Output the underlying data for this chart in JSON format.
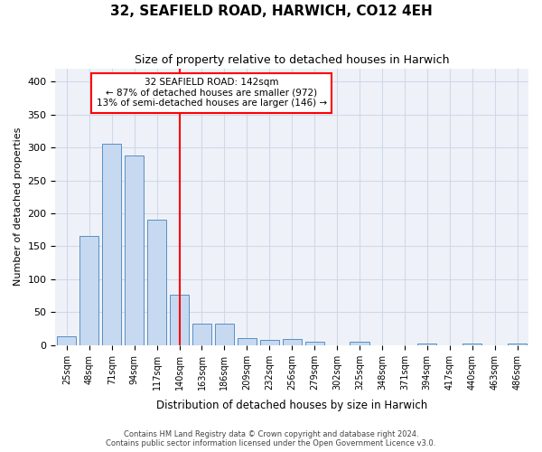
{
  "title": "32, SEAFIELD ROAD, HARWICH, CO12 4EH",
  "subtitle": "Size of property relative to detached houses in Harwich",
  "xlabel": "Distribution of detached houses by size in Harwich",
  "ylabel": "Number of detached properties",
  "categories": [
    "25sqm",
    "48sqm",
    "71sqm",
    "94sqm",
    "117sqm",
    "140sqm",
    "163sqm",
    "186sqm",
    "209sqm",
    "232sqm",
    "256sqm",
    "279sqm",
    "302sqm",
    "325sqm",
    "348sqm",
    "371sqm",
    "394sqm",
    "417sqm",
    "440sqm",
    "463sqm",
    "486sqm"
  ],
  "values": [
    14,
    165,
    305,
    288,
    190,
    77,
    32,
    32,
    11,
    8,
    9,
    5,
    0,
    5,
    0,
    0,
    3,
    0,
    3,
    0,
    3
  ],
  "bar_color": "#c6d9f0",
  "bar_edge_color": "#5a8fc3",
  "property_line_x": 5,
  "annotation_line1": "32 SEAFIELD ROAD: 142sqm",
  "annotation_line2": "← 87% of detached houses are smaller (972)",
  "annotation_line3": "13% of semi-detached houses are larger (146) →",
  "annotation_box_color": "white",
  "annotation_box_edge_color": "red",
  "vline_color": "red",
  "ylim": [
    0,
    420
  ],
  "yticks": [
    0,
    50,
    100,
    150,
    200,
    250,
    300,
    350,
    400
  ],
  "grid_color": "#d0d8e8",
  "bg_color": "#eef2f8",
  "footer1": "Contains HM Land Registry data © Crown copyright and database right 2024.",
  "footer2": "Contains public sector information licensed under the Open Government Licence v3.0."
}
